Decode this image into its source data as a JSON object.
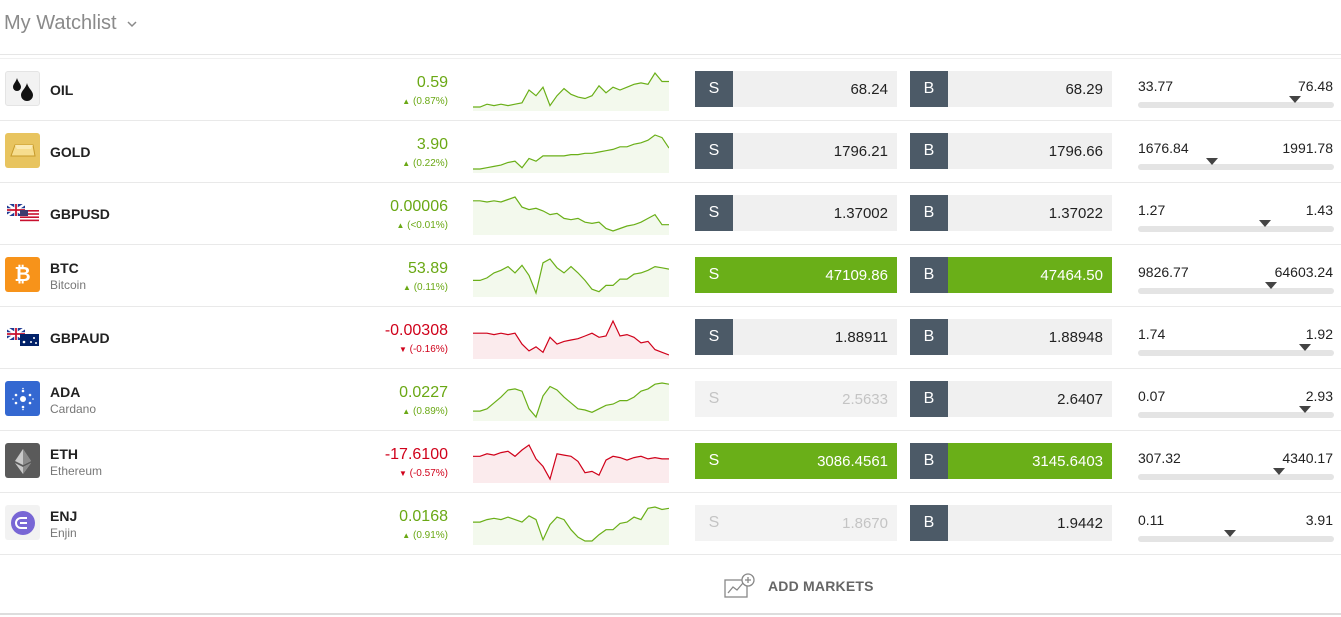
{
  "header": {
    "title": "My Watchlist"
  },
  "rows": [
    {
      "symbol": "OIL",
      "name": "",
      "change": "0.59",
      "pct": "(0.87%)",
      "dir": "up",
      "icon": "oil-drop-icon",
      "sell": "68.24",
      "buy": "68.29",
      "sell_state": "normal",
      "buy_state": "normal",
      "low": "33.77",
      "high": "76.48",
      "range_pos": 0.8,
      "spark": [
        20,
        20,
        18,
        19,
        18,
        19,
        18,
        17,
        8,
        12,
        6,
        19,
        12,
        7,
        11,
        13,
        14,
        12,
        5,
        10,
        6,
        8,
        6,
        4,
        3,
        4,
        -4,
        2,
        2
      ]
    },
    {
      "symbol": "GOLD",
      "name": "",
      "change": "3.90",
      "pct": "(0.22%)",
      "dir": "up",
      "icon": "gold-bar-icon",
      "sell": "1796.21",
      "buy": "1796.66",
      "sell_state": "normal",
      "buy_state": "normal",
      "low": "1676.84",
      "high": "1991.78",
      "range_pos": 0.38,
      "spark": [
        30,
        30,
        29,
        28,
        27,
        25,
        24,
        29,
        22,
        24,
        20,
        20,
        20,
        20,
        19,
        19,
        18,
        18,
        17,
        16,
        15,
        13,
        13,
        11,
        10,
        8,
        4,
        6,
        14
      ]
    },
    {
      "symbol": "GBPUSD",
      "name": "",
      "change": "0.00006",
      "pct": "(<0.01%)",
      "dir": "up",
      "icon": "uk-us-flag-icon",
      "sell": "1.37002",
      "buy": "1.37022",
      "sell_state": "normal",
      "buy_state": "normal",
      "low": "1.27",
      "high": "1.43",
      "range_pos": 0.65,
      "spark": [
        6,
        6,
        7,
        6,
        7,
        5,
        3,
        11,
        13,
        12,
        14,
        17,
        16,
        20,
        21,
        20,
        23,
        24,
        23,
        28,
        30,
        28,
        26,
        25,
        23,
        20,
        17,
        25,
        25
      ]
    },
    {
      "symbol": "BTC",
      "name": "Bitcoin",
      "change": "53.89",
      "pct": "(0.11%)",
      "dir": "up",
      "icon": "bitcoin-icon",
      "sell": "47109.86",
      "buy": "47464.50",
      "sell_state": "green",
      "buy_state": "green",
      "low": "9826.77",
      "high": "64603.24",
      "range_pos": 0.68,
      "spark": [
        18,
        18,
        16,
        12,
        10,
        7,
        12,
        6,
        14,
        28,
        4,
        1,
        8,
        12,
        7,
        12,
        18,
        25,
        27,
        22,
        22,
        17,
        17,
        13,
        12,
        10,
        7,
        8,
        9
      ]
    },
    {
      "symbol": "GBPAUD",
      "name": "",
      "change": "-0.00308",
      "pct": "(-0.16%)",
      "dir": "down",
      "icon": "uk-au-flag-icon",
      "sell": "1.88911",
      "buy": "1.88948",
      "sell_state": "normal",
      "buy_state": "normal",
      "low": "1.74",
      "high": "1.92",
      "range_pos": 0.85,
      "spark": [
        12,
        12,
        12,
        13,
        12,
        13,
        12,
        20,
        25,
        22,
        26,
        15,
        20,
        18,
        17,
        16,
        14,
        12,
        15,
        14,
        3,
        14,
        13,
        15,
        19,
        18,
        24,
        26,
        28
      ]
    },
    {
      "symbol": "ADA",
      "name": "Cardano",
      "change": "0.0227",
      "pct": "(0.89%)",
      "dir": "up",
      "icon": "cardano-icon",
      "sell": "2.5633",
      "buy": "2.6407",
      "sell_state": "disabled",
      "buy_state": "normal",
      "low": "0.07",
      "high": "2.93",
      "range_pos": 0.85,
      "spark": [
        27,
        27,
        25,
        20,
        15,
        9,
        8,
        10,
        25,
        32,
        14,
        6,
        9,
        15,
        20,
        25,
        26,
        28,
        25,
        22,
        21,
        18,
        18,
        15,
        10,
        8,
        4,
        3,
        4
      ]
    },
    {
      "symbol": "ETH",
      "name": "Ethereum",
      "change": "-17.6100",
      "pct": "(-0.57%)",
      "dir": "down",
      "icon": "ethereum-icon",
      "sell": "3086.4561",
      "buy": "3145.6403",
      "sell_state": "green",
      "buy_state": "green",
      "low": "307.32",
      "high": "4340.17",
      "range_pos": 0.72,
      "spark": [
        12,
        12,
        10,
        11,
        9,
        8,
        12,
        7,
        3,
        14,
        20,
        30,
        10,
        11,
        12,
        16,
        25,
        24,
        27,
        15,
        12,
        13,
        15,
        13,
        12,
        14,
        13,
        14,
        14
      ]
    },
    {
      "symbol": "ENJ",
      "name": "Enjin",
      "change": "0.0168",
      "pct": "(0.91%)",
      "dir": "up",
      "icon": "enjin-icon",
      "sell": "1.8670",
      "buy": "1.9442",
      "sell_state": "disabled",
      "buy_state": "normal",
      "low": "0.11",
      "high": "3.91",
      "range_pos": 0.47,
      "spark": [
        14,
        14,
        12,
        11,
        12,
        10,
        12,
        14,
        9,
        12,
        28,
        16,
        10,
        12,
        20,
        26,
        29,
        29,
        24,
        20,
        20,
        15,
        14,
        10,
        12,
        3,
        2,
        4,
        3
      ]
    }
  ],
  "labels": {
    "sell": "S",
    "buy": "B"
  },
  "footer": {
    "add_markets": "ADD MARKETS",
    "icon": "add-chart-icon"
  },
  "colors": {
    "green": "#6aaf18",
    "red": "#d0021b",
    "dark": "#4c5a67"
  }
}
